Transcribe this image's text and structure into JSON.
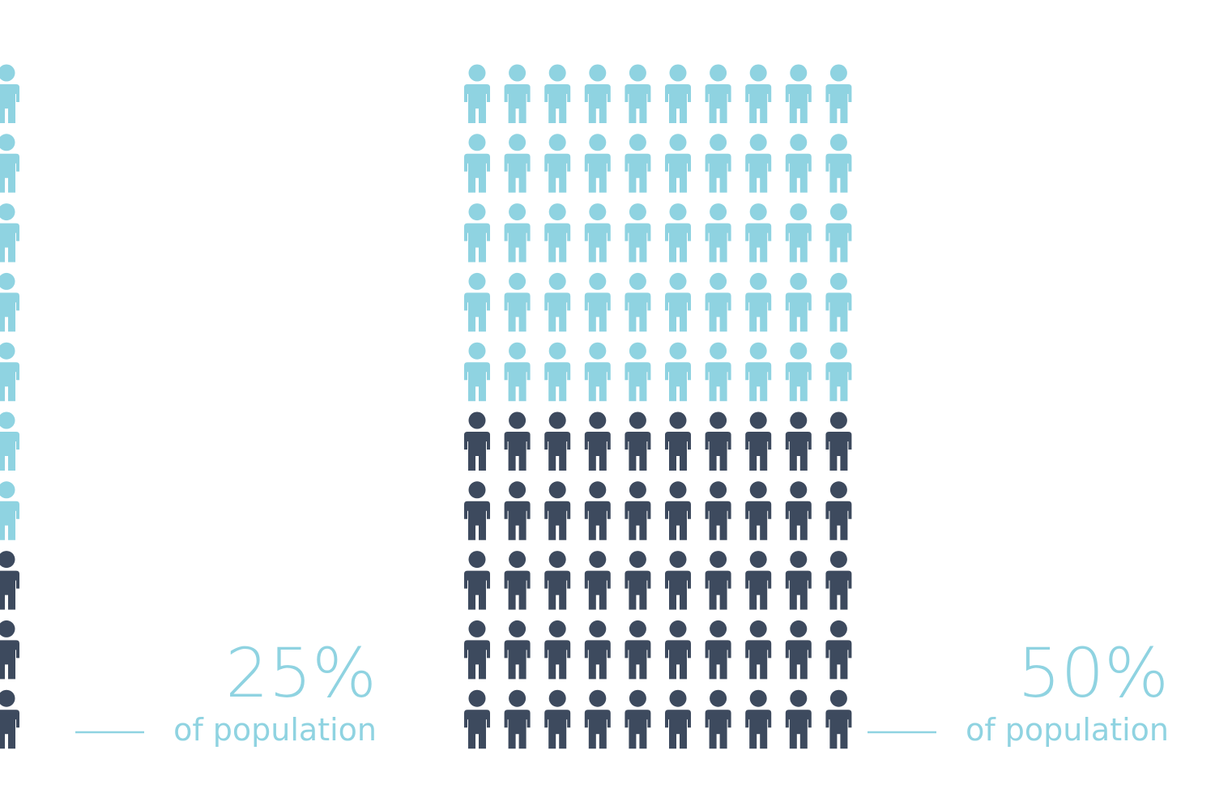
{
  "chart_data": [
    {
      "type": "pictogram",
      "value": 25,
      "value_label": "25%",
      "label": "of population",
      "colors": [
        "#3d4a5e",
        "#8fd3e1"
      ]
    },
    {
      "type": "pictogram",
      "value": 50,
      "value_label": "50%",
      "label": "of population",
      "colors": [
        "#3d4a5e",
        "#8fd3e1"
      ]
    }
  ]
}
